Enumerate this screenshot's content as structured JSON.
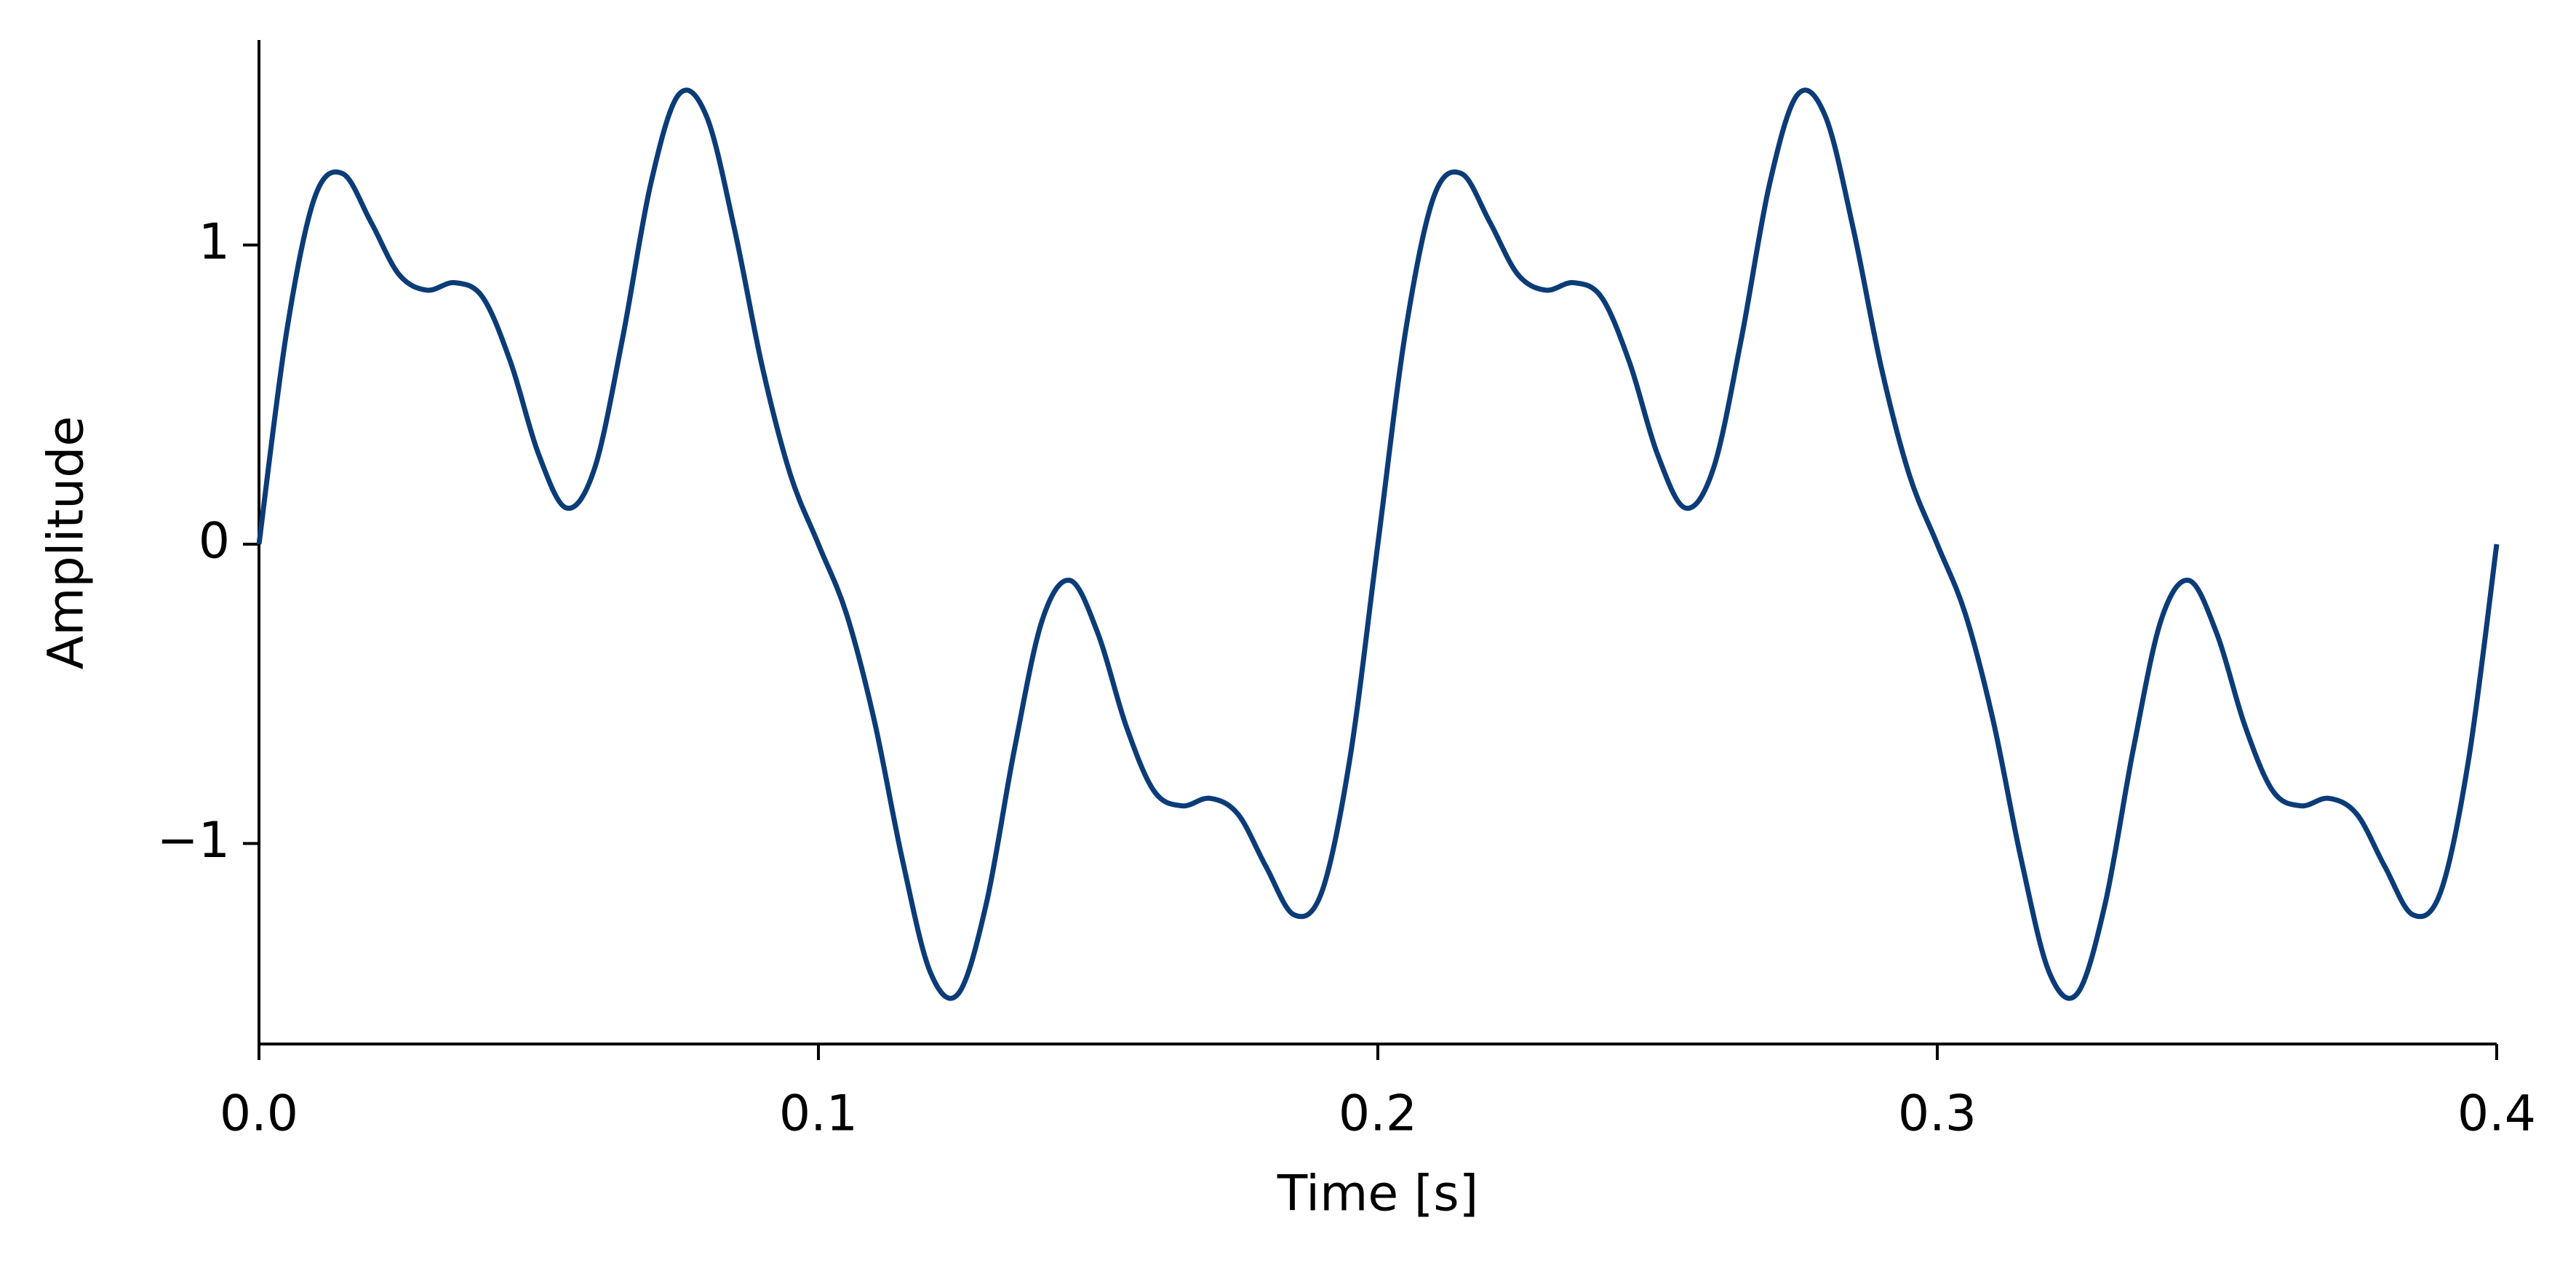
{
  "chart_data": {
    "type": "line",
    "xlabel": "Time [s]",
    "ylabel": "Amplitude",
    "xlim": [
      0,
      0.4
    ],
    "ylim": [
      -1.67,
      1.68
    ],
    "xticks": [
      {
        "value": 0,
        "label": "0.0"
      },
      0.1,
      0.2,
      0.3,
      0.4
    ],
    "yticks": [
      {
        "value": -1,
        "label": "−1"
      },
      0,
      1
    ],
    "grid": false,
    "x": [
      0,
      0.005,
      0.01,
      0.015,
      0.02,
      0.025,
      0.03,
      0.035,
      0.04,
      0.045,
      0.05,
      0.055,
      0.06,
      0.065,
      0.07,
      0.075,
      0.08,
      0.085,
      0.09,
      0.095,
      0.1,
      0.105,
      0.11,
      0.115,
      0.12,
      0.125,
      0.13,
      0.135,
      0.14,
      0.145,
      0.15,
      0.155,
      0.16,
      0.165,
      0.17,
      0.175,
      0.18,
      0.185,
      0.19,
      0.195,
      0.2,
      0.205,
      0.21,
      0.215,
      0.22,
      0.225,
      0.23,
      0.235,
      0.24,
      0.245,
      0.25,
      0.255,
      0.26,
      0.265,
      0.27,
      0.275,
      0.28,
      0.285,
      0.29,
      0.295,
      0.3,
      0.305,
      0.31,
      0.315,
      0.32,
      0.325,
      0.33,
      0.335,
      0.34,
      0.345,
      0.35,
      0.355,
      0.36,
      0.365,
      0.37,
      0.375,
      0.38,
      0.385,
      0.39,
      0.395,
      0.4
    ],
    "series": [
      {
        "color": "#0b3c78",
        "values": [
          0,
          0.717,
          1.161,
          1.238,
          1.077,
          0.902,
          0.849,
          0.874,
          0.825,
          0.607,
          0.3,
          0.121,
          0.254,
          0.689,
          1.202,
          1.502,
          1.43,
          1.053,
          0.59,
          0.232,
          0,
          -0.232,
          -0.59,
          -1.053,
          -1.43,
          -1.502,
          -1.202,
          -0.689,
          -0.254,
          -0.121,
          -0.3,
          -0.607,
          -0.825,
          -0.874,
          -0.849,
          -0.902,
          -1.077,
          -1.238,
          -1.161,
          -0.717,
          0,
          0.717,
          1.161,
          1.238,
          1.077,
          0.902,
          0.849,
          0.874,
          0.825,
          0.607,
          0.3,
          0.121,
          0.254,
          0.689,
          1.202,
          1.502,
          1.43,
          1.053,
          0.59,
          0.232,
          0,
          -0.232,
          -0.59,
          -1.053,
          -1.43,
          -1.502,
          -1.202,
          -0.689,
          -0.254,
          -0.121,
          -0.3,
          -0.607,
          -0.825,
          -0.874,
          -0.849,
          -0.902,
          -1.077,
          -1.238,
          -1.161,
          -0.717,
          0
        ]
      }
    ]
  }
}
